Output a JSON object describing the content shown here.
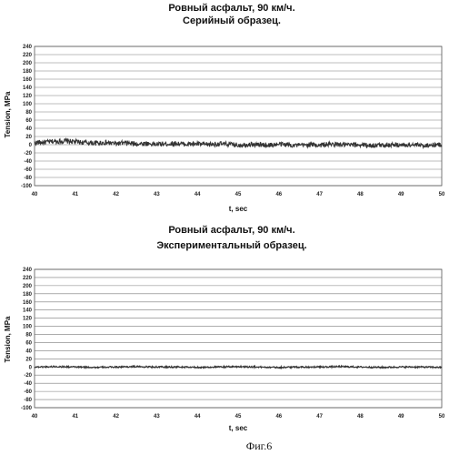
{
  "figure": {
    "caption": "Фиг.6"
  },
  "chart_data": [
    {
      "type": "line",
      "title": "Ровный асфальт,  90 км/ч.",
      "subtitle": "Серийный образец.",
      "xlabel": "t, sec",
      "ylabel": "Tension, MPa",
      "xlim": [
        40,
        50
      ],
      "ylim": [
        -100,
        240
      ],
      "xticks": [
        40,
        41,
        42,
        43,
        44,
        45,
        46,
        47,
        48,
        49,
        50
      ],
      "yticks": [
        240,
        220,
        200,
        180,
        160,
        140,
        120,
        100,
        80,
        60,
        40,
        20,
        0,
        -20,
        -40,
        -60,
        -80,
        -100
      ],
      "grid": true,
      "series": [
        {
          "color": "#333333",
          "x": [
            40.0,
            40.25,
            40.5,
            40.75,
            41.0,
            41.25,
            41.5,
            41.75,
            42.0,
            42.25,
            42.5,
            42.75,
            43.0,
            43.25,
            43.5,
            43.75,
            44.0,
            44.25,
            44.5,
            44.75,
            45.0,
            45.25,
            45.5,
            45.75,
            46.0,
            46.25,
            46.5,
            46.75,
            47.0,
            47.25,
            47.5,
            47.75,
            48.0,
            48.25,
            48.5,
            48.75,
            49.0,
            49.25,
            49.5,
            49.75,
            50.0
          ],
          "y": [
            5,
            6,
            8,
            9,
            7,
            5,
            4,
            5,
            3,
            4,
            2,
            3,
            1,
            2,
            3,
            1,
            2,
            0,
            2,
            1,
            -1,
            1,
            0,
            -1,
            1,
            0,
            -2,
            0,
            -1,
            1,
            0,
            -1,
            0,
            -2,
            -1,
            0,
            -1,
            0,
            -2,
            -1,
            0
          ],
          "noise_amplitude": 6
        }
      ]
    },
    {
      "type": "line",
      "title": "Ровный асфальт,  90 км/ч.",
      "subtitle": "Экспериментальный образец.",
      "xlabel": "t, sec",
      "ylabel": "Tension, MPa",
      "xlim": [
        40,
        50
      ],
      "ylim": [
        -100,
        240
      ],
      "xticks": [
        40,
        41,
        42,
        43,
        44,
        45,
        46,
        47,
        48,
        49,
        50
      ],
      "yticks": [
        240,
        220,
        200,
        180,
        160,
        140,
        120,
        100,
        80,
        60,
        40,
        20,
        0,
        -20,
        -40,
        -60,
        -80,
        -100
      ],
      "grid": true,
      "series": [
        {
          "color": "#333333",
          "x": [
            40.0,
            40.5,
            41.0,
            41.5,
            42.0,
            42.5,
            43.0,
            43.5,
            44.0,
            44.5,
            45.0,
            45.5,
            46.0,
            46.5,
            47.0,
            47.5,
            48.0,
            48.5,
            49.0,
            49.5,
            50.0
          ],
          "y": [
            0,
            1,
            0,
            -1,
            0,
            1,
            0,
            0,
            -1,
            0,
            1,
            0,
            -1,
            0,
            0,
            1,
            0,
            -1,
            0,
            0,
            -1
          ],
          "noise_amplitude": 2
        }
      ]
    }
  ]
}
